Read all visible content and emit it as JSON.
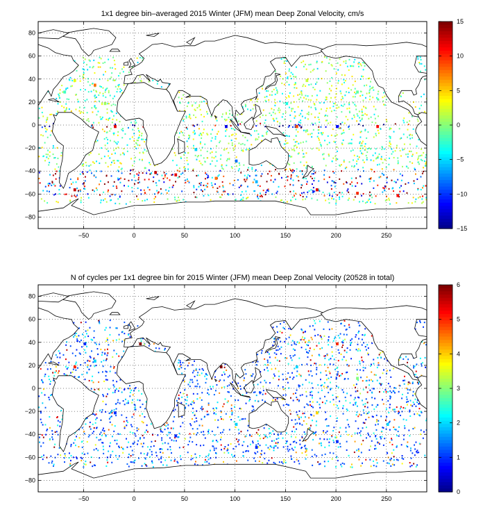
{
  "figure": {
    "colors": {
      "background": "#ffffff",
      "frame": "#000000",
      "grid": "#000000",
      "land_outline": "#000000"
    }
  },
  "chart_data": [
    {
      "type": "heatmap",
      "title": "1x1 degree bin–averaged 2015 Winter (JFM) mean Deep Zonal Velocity, cm/s",
      "xlabel": "",
      "ylabel": "",
      "xlim": [
        -95,
        290
      ],
      "ylim": [
        -90,
        90
      ],
      "x_ticks": [
        -50,
        0,
        50,
        100,
        150,
        200,
        250
      ],
      "y_ticks": [
        80,
        60,
        40,
        20,
        0,
        -20,
        -40,
        -60,
        -80
      ],
      "grid": true,
      "colormap": "jet",
      "colorbar": {
        "range": [
          -15,
          15
        ],
        "ticks": [
          15,
          10,
          5,
          0,
          -5,
          -10,
          -15
        ],
        "placement": "right"
      },
      "representative_cells": [
        {
          "x": -60,
          "y": 40,
          "value": 3
        },
        {
          "x": -40,
          "y": 36,
          "value": 8
        },
        {
          "x": -70,
          "y": 30,
          "value": -2
        },
        {
          "x": -30,
          "y": 20,
          "value": 1
        },
        {
          "x": -20,
          "y": 0,
          "value": 12
        },
        {
          "x": -80,
          "y": 0,
          "value": 10
        },
        {
          "x": 90,
          "y": 0,
          "value": -12
        },
        {
          "x": 160,
          "y": 0,
          "value": 9
        },
        {
          "x": 200,
          "y": 0,
          "value": -11
        },
        {
          "x": 240,
          "y": 0,
          "value": 11
        },
        {
          "x": 20,
          "y": -40,
          "value": 13
        },
        {
          "x": 40,
          "y": -42,
          "value": 12
        },
        {
          "x": 80,
          "y": -45,
          "value": 8
        },
        {
          "x": 120,
          "y": -48,
          "value": -6
        },
        {
          "x": 180,
          "y": -55,
          "value": 12
        },
        {
          "x": 220,
          "y": -58,
          "value": 10
        },
        {
          "x": 260,
          "y": -60,
          "value": 11
        },
        {
          "x": -60,
          "y": -55,
          "value": 13
        },
        {
          "x": 170,
          "y": 40,
          "value": 2
        },
        {
          "x": 220,
          "y": 30,
          "value": -1
        },
        {
          "x": 250,
          "y": 40,
          "value": 3
        },
        {
          "x": 150,
          "y": 20,
          "value": -3
        },
        {
          "x": 60,
          "y": -20,
          "value": -5
        },
        {
          "x": 100,
          "y": -30,
          "value": -8
        }
      ]
    },
    {
      "type": "heatmap",
      "title": "N of cycles per 1x1 degree bin for 2015 Winter (JFM) mean Deep Zonal Velocity (20528 in total)",
      "xlabel": "",
      "ylabel": "",
      "xlim": [
        -95,
        290
      ],
      "ylim": [
        -90,
        90
      ],
      "x_ticks": [
        -50,
        0,
        50,
        100,
        150,
        200,
        250
      ],
      "y_ticks": [
        80,
        60,
        40,
        20,
        0,
        -20,
        -40,
        -60,
        -80
      ],
      "grid": true,
      "colormap": "jet",
      "colorbar": {
        "range": [
          0,
          6
        ],
        "ticks": [
          6,
          5,
          4,
          3,
          2,
          1,
          0
        ],
        "placement": "right"
      },
      "representative_cells": [
        {
          "x": -50,
          "y": 40,
          "value": 1
        },
        {
          "x": -40,
          "y": 25,
          "value": 2
        },
        {
          "x": -60,
          "y": 20,
          "value": 5
        },
        {
          "x": 5,
          "y": 40,
          "value": 6
        },
        {
          "x": 85,
          "y": 20,
          "value": 6
        },
        {
          "x": 200,
          "y": 40,
          "value": 5
        },
        {
          "x": 160,
          "y": 20,
          "value": 2
        },
        {
          "x": 220,
          "y": 10,
          "value": 3
        },
        {
          "x": 40,
          "y": -40,
          "value": 1
        },
        {
          "x": 120,
          "y": -50,
          "value": 1
        },
        {
          "x": 200,
          "y": -45,
          "value": 1
        },
        {
          "x": 250,
          "y": -30,
          "value": 2
        },
        {
          "x": -20,
          "y": -20,
          "value": 1
        },
        {
          "x": 180,
          "y": -20,
          "value": 4
        },
        {
          "x": 260,
          "y": 20,
          "value": 5
        },
        {
          "x": 100,
          "y": -30,
          "value": 2
        }
      ]
    }
  ]
}
